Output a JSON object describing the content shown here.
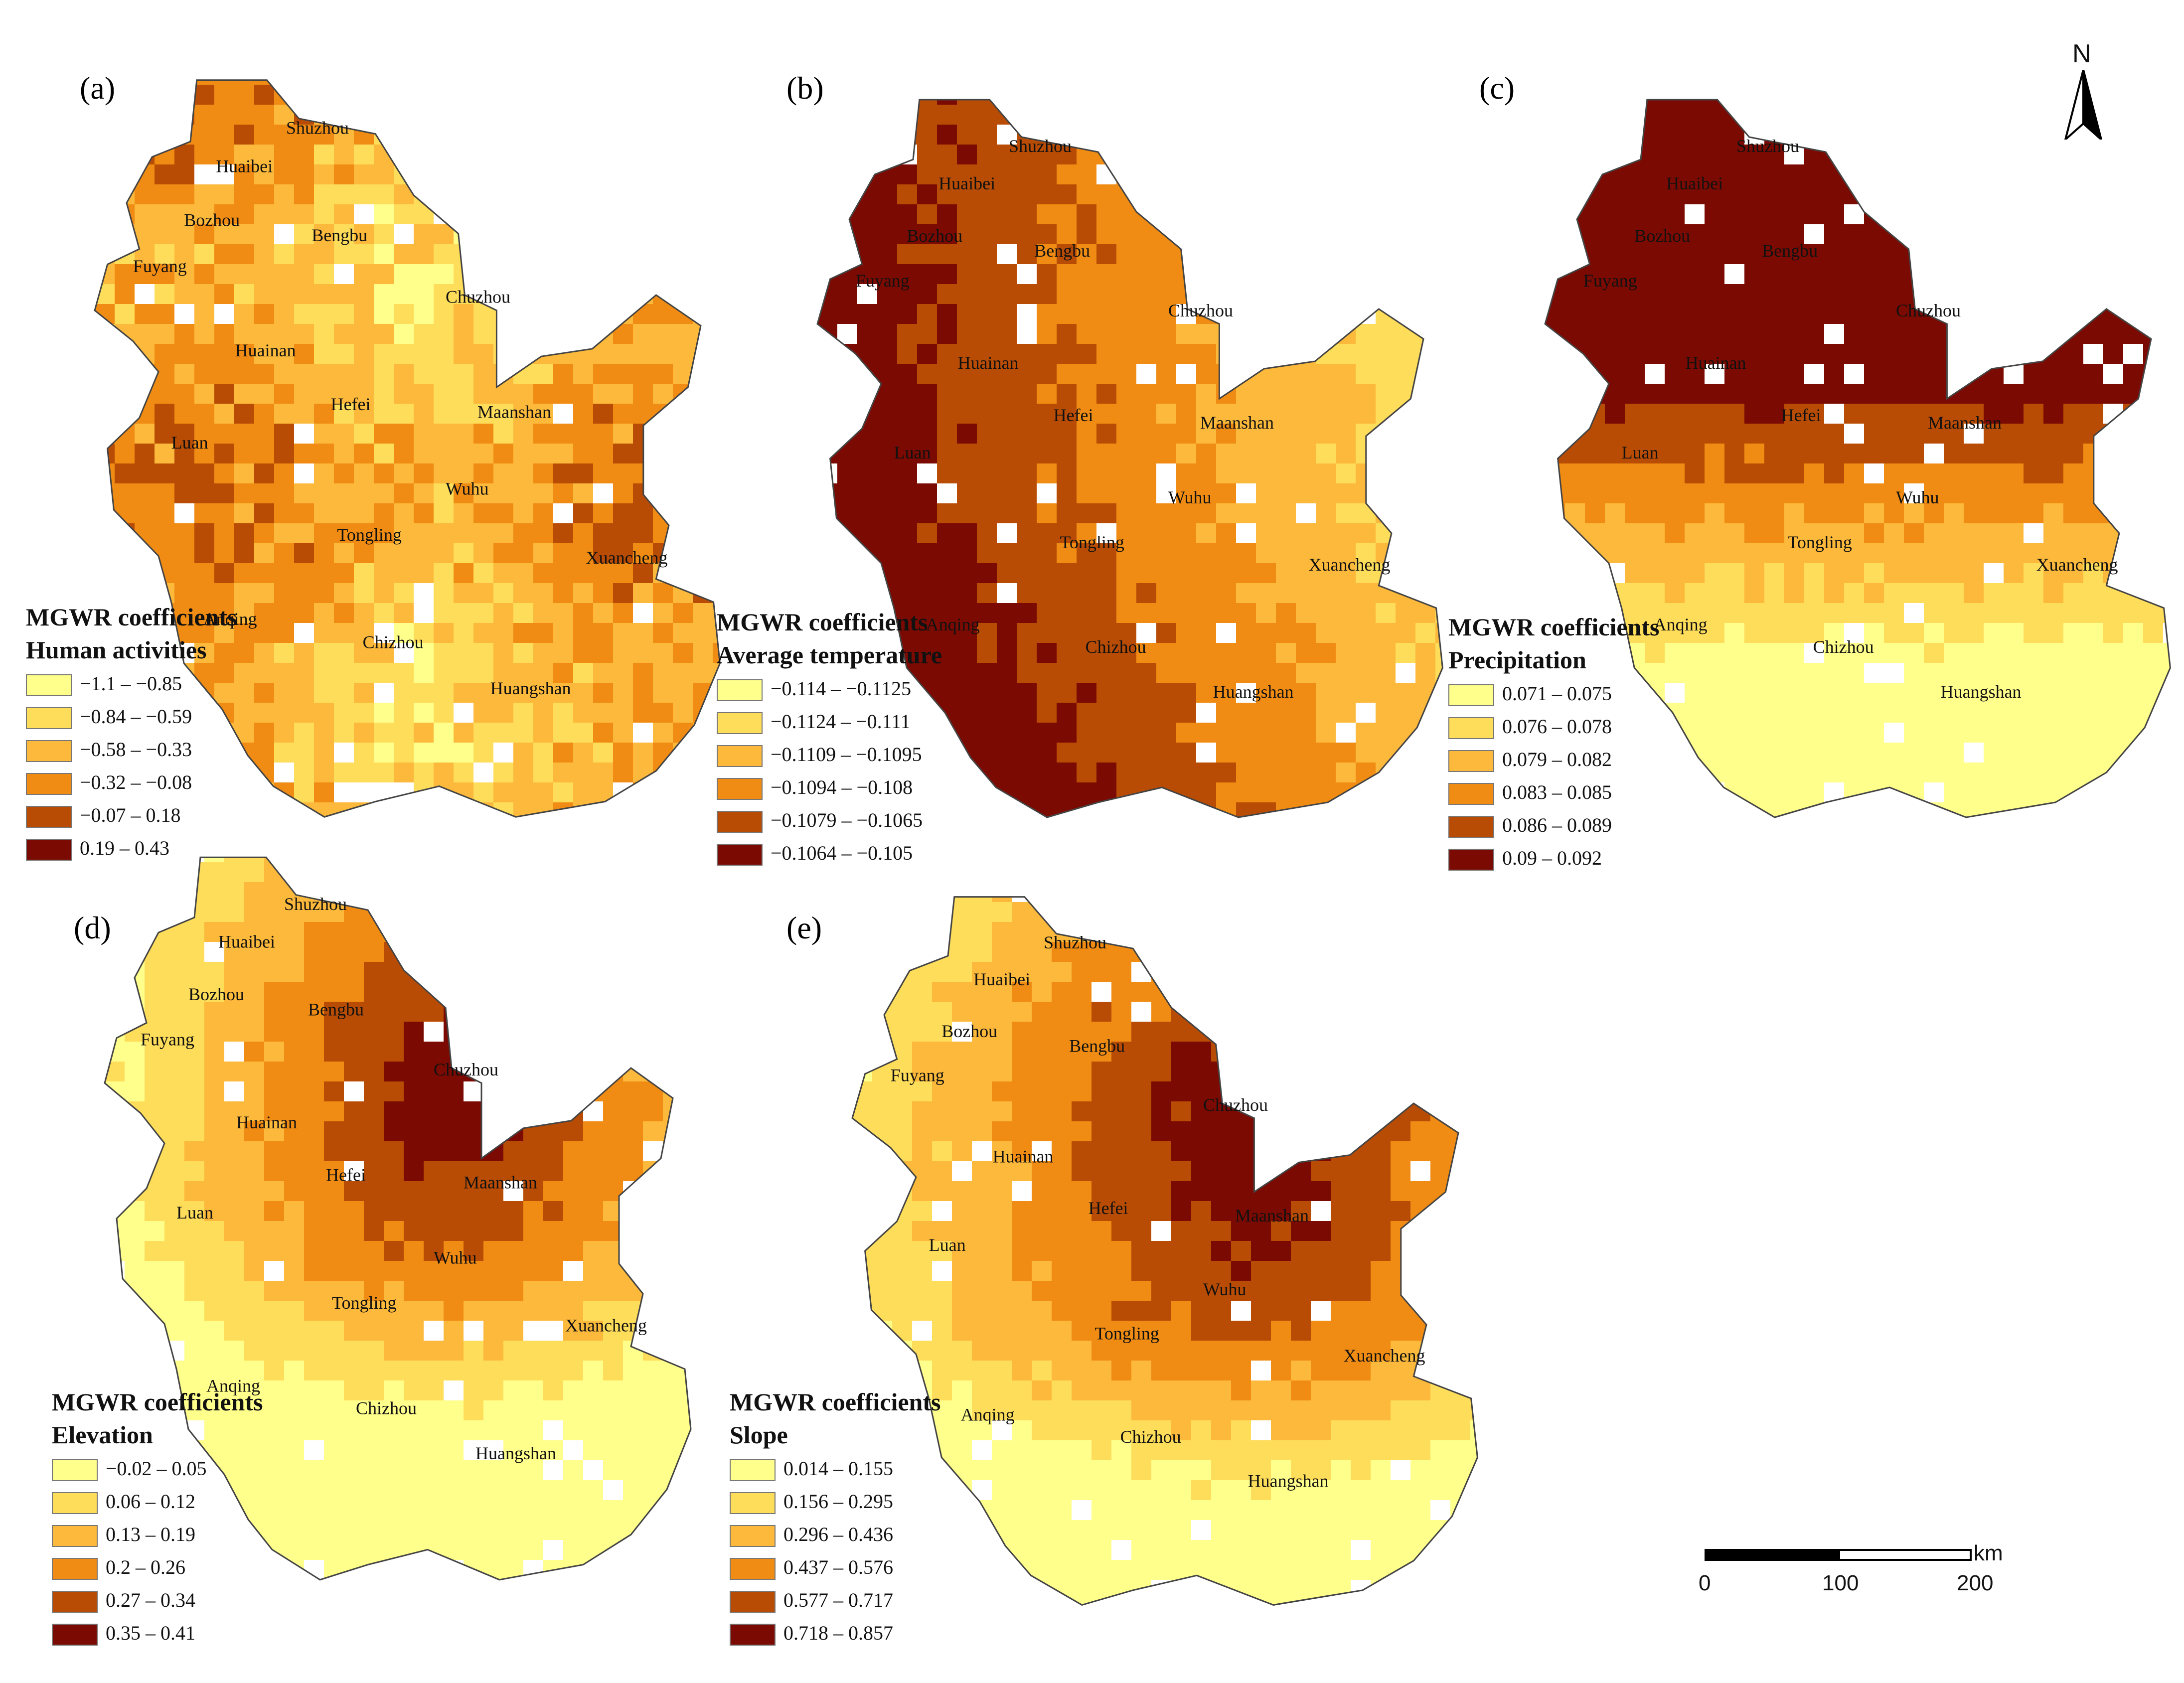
{
  "north_label": "N",
  "scale": {
    "unit": "km",
    "ticks": [
      "0",
      "100",
      "200"
    ]
  },
  "panels": [
    {
      "label": "(a)",
      "legend_title": [
        "MGWR coefficients",
        "Human activities"
      ],
      "classes": [
        "−1.1 – −0.85",
        "−0.84 – −0.59",
        "−0.58 – −0.33",
        "−0.32 – −0.08",
        "−0.07 – 0.18",
        "0.19 – 0.43"
      ],
      "colors": [
        "#ffff8c",
        "#fedd5a",
        "#fcb93b",
        "#f08c14",
        "#b84c04",
        "#7a0a02"
      ]
    },
    {
      "label": "(b)",
      "legend_title": [
        "MGWR coefficients",
        "Average temperature"
      ],
      "classes": [
        "−0.114 – −0.1125",
        "−0.1124 – −0.111",
        "−0.1109 – −0.1095",
        "−0.1094 – −0.108",
        "−0.1079 – −0.1065",
        "−0.1064 – −0.105"
      ],
      "colors": [
        "#ffff8c",
        "#fedd5a",
        "#fcb93b",
        "#f08c14",
        "#b84c04",
        "#7a0a02"
      ]
    },
    {
      "label": "(c)",
      "legend_title": [
        "MGWR coefficients",
        "Precipitation"
      ],
      "classes": [
        "0.071 – 0.075",
        "0.076 – 0.078",
        "0.079 – 0.082",
        "0.083 – 0.085",
        "0.086 – 0.089",
        "0.09 – 0.092"
      ],
      "colors": [
        "#ffff8c",
        "#fedd5a",
        "#fcb93b",
        "#f08c14",
        "#b84c04",
        "#7a0a02"
      ]
    },
    {
      "label": "(d)",
      "legend_title": [
        "MGWR coefficients",
        "Elevation"
      ],
      "classes": [
        "−0.02 – 0.05",
        "0.06 – 0.12",
        "0.13 – 0.19",
        "0.2 – 0.26",
        "0.27 – 0.34",
        "0.35 – 0.41"
      ],
      "colors": [
        "#ffff8c",
        "#fedd5a",
        "#fcb93b",
        "#f08c14",
        "#b84c04",
        "#7a0a02"
      ]
    },
    {
      "label": "(e)",
      "legend_title": [
        "MGWR coefficients",
        "Slope"
      ],
      "classes": [
        "0.014 – 0.155",
        "0.156 – 0.295",
        "0.296 – 0.436",
        "0.437 – 0.576",
        "0.577 – 0.717",
        "0.718 – 0.857"
      ],
      "colors": [
        "#ffff8c",
        "#fedd5a",
        "#fcb93b",
        "#f08c14",
        "#b84c04",
        "#7a0a02"
      ]
    }
  ],
  "cities": [
    "Shuzhou",
    "Huaibei",
    "Bozhou",
    "Bengbu",
    "Fuyang",
    "Chuzhou",
    "Huainan",
    "Hefei",
    "Luan",
    "Maanshan",
    "Wuhu",
    "Tongling",
    "Xuancheng",
    "Anqing",
    "Chizhou",
    "Huangshan"
  ]
}
